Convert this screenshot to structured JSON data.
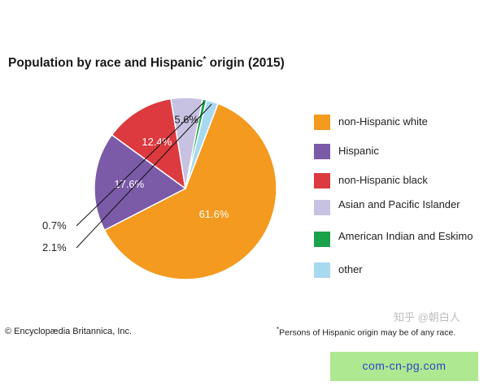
{
  "title": "Population by race and Hispanic",
  "title_mark": "*",
  "title_tail": "origin (2015)",
  "chart_data": {
    "type": "pie",
    "title": "Population by race and Hispanic* origin (2015)",
    "slices": [
      {
        "name": "non-Hispanic white",
        "value": 61.6,
        "label": "61.6%",
        "color": "#f39a1f"
      },
      {
        "name": "Hispanic",
        "value": 17.6,
        "label": "17.6%",
        "color": "#7b5aa8"
      },
      {
        "name": "non-Hispanic black",
        "value": 12.4,
        "label": "12.4%",
        "color": "#dc3a3f"
      },
      {
        "name": "Asian and Pacific Islander",
        "value": 5.6,
        "label": "5.6%",
        "color": "#c8c2e2"
      },
      {
        "name": "American Indian and Eskimo",
        "value": 0.7,
        "label": "0.7%",
        "color": "#1aa24a"
      },
      {
        "name": "other",
        "value": 2.1,
        "label": "2.1%",
        "color": "#a9d8f1"
      }
    ],
    "legend_position": "right"
  },
  "legend": [
    {
      "label": "non-Hispanic white",
      "color": "#f39a1f"
    },
    {
      "label": "Hispanic",
      "color": "#7b5aa8"
    },
    {
      "label": "non-Hispanic black",
      "color": "#dc3a3f"
    },
    {
      "label": "Asian and Pacific Islander",
      "color": "#c8c2e2"
    },
    {
      "label": "American Indian and Eskimo",
      "color": "#1aa24a"
    },
    {
      "label": "other",
      "color": "#a9d8f1"
    }
  ],
  "copyright": "© Encyclopædia Britannica, Inc.",
  "footnote_mark": "*",
  "footnote": "Persons of Hispanic origin may be of any race.",
  "watermark": "知乎 @朝白人",
  "banner_text": "com-cn-pg.com"
}
